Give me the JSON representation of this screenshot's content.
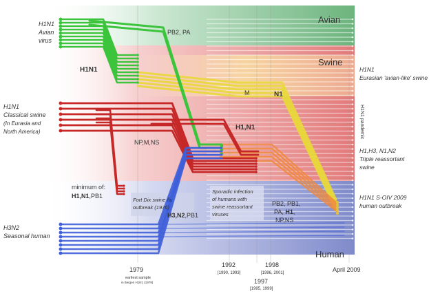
{
  "zones": [
    {
      "key": "avian",
      "label": "Avian",
      "color": "#7cc08d"
    },
    {
      "key": "swine",
      "label": "Swine",
      "color": "#ef8f8f"
    },
    {
      "key": "human",
      "label": "Human",
      "color": "#8f9ad6"
    }
  ],
  "left_labels": {
    "avian": [
      "H1N1",
      "Avian",
      "virus"
    ],
    "classical": [
      "H1N1",
      "Classical swine",
      "(In Eurasia and",
      "North America)"
    ],
    "seasonal": [
      "H3N2",
      "Seasonal human"
    ]
  },
  "right_labels": {
    "eurasian": [
      "H1N1",
      "Eurasian 'avian-like' swine"
    ],
    "triple": [
      "H1,H3, N1,N2",
      "Triple reassortant",
      "swine"
    ],
    "soiv": [
      "H1N1 S-OIV 2009",
      "human outbreak"
    ],
    "vertical_faint": "H1N1 pandemic"
  },
  "inline_labels": {
    "h1n1_avian": "H1N1",
    "pb2_pa": "PB2, PA",
    "m": "M",
    "n1": "N1",
    "h1_n1": "H1,N1",
    "np_m_ns": "NP,M,NS",
    "h3_n2": "H3,N2",
    "h3_n2_pb1": ",PB1",
    "minimum_of": "minimum of:",
    "min_h1n1": "H1,N1",
    "min_pb1": ",PB1",
    "pb2_pb1": "PB2, PB1,",
    "pa_h1": "PA, ",
    "h1_bold": "H1",
    "h1_dot": ",",
    "np_ns": "NP,NS"
  },
  "notes": {
    "fort_dix": [
      "Fort Dix swine flu",
      "outbreak (1976)"
    ],
    "sporadic": [
      "Sporadic infection",
      "of humans with",
      "swine reassortant",
      "viruses"
    ]
  },
  "axis": {
    "ticks": [
      {
        "label": "1979",
        "sub": [
          "earliest sample",
          "in Bergen H1N1 (1979)"
        ]
      },
      {
        "label": "1992",
        "sub": [
          "[1990, 1993]"
        ]
      },
      {
        "label": "1998",
        "sub": [
          "[1996, 2001]"
        ]
      },
      {
        "label": "1997",
        "sub": [
          "[1995, 1999]"
        ]
      },
      {
        "label": "April 2009",
        "sub": []
      }
    ]
  },
  "colors": {
    "avian_green": "#3cc43c",
    "swine_red": "#c62828",
    "human_blue": "#3f5fd9",
    "eurasian_yellow": "#e8d83a",
    "triple_orange": "#f08a3c",
    "pale_lines": "#f4d2d2"
  }
}
